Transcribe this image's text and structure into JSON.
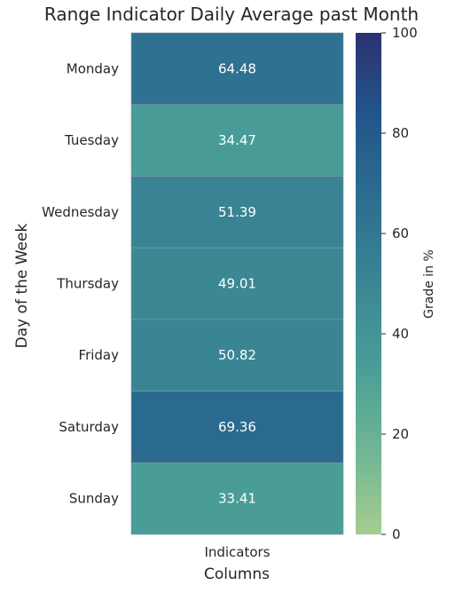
{
  "chart_data": {
    "type": "heatmap",
    "title": "Range Indicator Daily Average past Month",
    "xlabel": "Columns",
    "ylabel": "Day of the Week",
    "columns": [
      "Indicators"
    ],
    "rows": [
      "Monday",
      "Tuesday",
      "Wednesday",
      "Thursday",
      "Friday",
      "Saturday",
      "Sunday"
    ],
    "values": [
      [
        64.48
      ],
      [
        34.47
      ],
      [
        51.39
      ],
      [
        49.01
      ],
      [
        50.82
      ],
      [
        69.36
      ],
      [
        33.41
      ]
    ],
    "colorbar": {
      "label": "Grade in %",
      "range": [
        0,
        100
      ],
      "ticks": [
        0,
        20,
        40,
        60,
        80,
        100
      ],
      "colormap": "crest",
      "colors": [
        "#a5cd90",
        "#6fb694",
        "#4a9d97",
        "#3a8694",
        "#2d6e90",
        "#22568a",
        "#2c3172"
      ]
    },
    "grid": false
  }
}
